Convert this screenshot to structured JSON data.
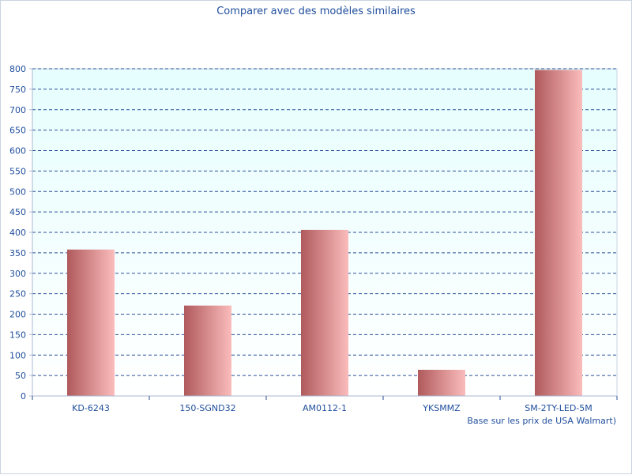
{
  "chart_data": {
    "type": "bar",
    "title": "Comparer avec des modèles similaires",
    "note": "Base sur les prix de USA Walmart)",
    "categories": [
      "KD-6243",
      "150-SGND32",
      "AM0112-1",
      "YKSMMZ",
      "SM-2TY-LED-5M"
    ],
    "values": [
      358,
      221,
      406,
      64,
      797
    ],
    "ylim": [
      0,
      800
    ],
    "ytick_step": 50,
    "grid": true,
    "colors": {
      "plot_background": "#e6fefe",
      "bar_dark": "#b05a5c",
      "bar_light": "#fbbcbc",
      "grid": "#2a4f95",
      "text": "#1f4e9c",
      "axis": "#aab8d0"
    }
  }
}
